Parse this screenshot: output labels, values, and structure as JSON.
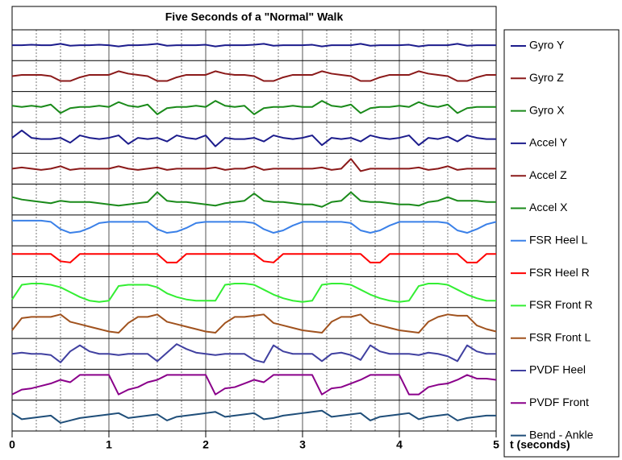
{
  "chart_data": {
    "type": "line",
    "title": "Five Seconds of a \"Normal\"  Walk",
    "xlabel": "t (seconds)",
    "x": [
      0,
      0.1,
      0.2,
      0.3,
      0.4,
      0.5,
      0.6,
      0.7,
      0.8,
      0.9,
      1,
      1.1,
      1.2,
      1.3,
      1.4,
      1.5,
      1.6,
      1.7,
      1.8,
      1.9,
      2,
      2.1,
      2.2,
      2.3,
      2.4,
      2.5,
      2.6,
      2.7,
      2.8,
      2.9,
      3,
      3.1,
      3.2,
      3.3,
      3.4,
      3.5,
      3.6,
      3.7,
      3.8,
      3.9,
      4,
      4.1,
      4.2,
      4.3,
      4.4,
      4.5,
      4.6,
      4.7,
      4.8,
      4.9,
      5
    ],
    "xlim": [
      0,
      5
    ],
    "xticks": [
      0,
      1,
      2,
      3,
      4,
      5
    ],
    "xminor": [
      0.25,
      0.5,
      0.75,
      1.25,
      1.5,
      1.75,
      2.25,
      2.5,
      2.75,
      3.25,
      3.5,
      3.75,
      4.25,
      4.5,
      4.75
    ],
    "ylim": [
      0,
      1
    ],
    "grid": true,
    "series": [
      {
        "name": "Gyro Y",
        "color": "#1c1c8c",
        "values": [
          0.5,
          0.5,
          0.52,
          0.5,
          0.5,
          0.56,
          0.48,
          0.5,
          0.5,
          0.52,
          0.5,
          0.45,
          0.5,
          0.5,
          0.52,
          0.56,
          0.48,
          0.5,
          0.5,
          0.5,
          0.52,
          0.45,
          0.5,
          0.5,
          0.5,
          0.52,
          0.56,
          0.48,
          0.5,
          0.5,
          0.5,
          0.52,
          0.45,
          0.5,
          0.5,
          0.5,
          0.56,
          0.48,
          0.5,
          0.5,
          0.5,
          0.52,
          0.45,
          0.5,
          0.5,
          0.5,
          0.56,
          0.48,
          0.5,
          0.5,
          0.5
        ]
      },
      {
        "name": "Gyro Z",
        "color": "#8b1a1a",
        "values": [
          0.5,
          0.55,
          0.55,
          0.55,
          0.5,
          0.3,
          0.3,
          0.45,
          0.55,
          0.55,
          0.55,
          0.7,
          0.6,
          0.55,
          0.5,
          0.3,
          0.3,
          0.45,
          0.55,
          0.55,
          0.55,
          0.7,
          0.6,
          0.55,
          0.55,
          0.5,
          0.3,
          0.3,
          0.45,
          0.55,
          0.55,
          0.55,
          0.7,
          0.6,
          0.55,
          0.5,
          0.3,
          0.3,
          0.45,
          0.55,
          0.55,
          0.55,
          0.7,
          0.6,
          0.55,
          0.5,
          0.3,
          0.3,
          0.45,
          0.55,
          0.55
        ]
      },
      {
        "name": "Gyro X",
        "color": "#1a8a1a",
        "values": [
          0.55,
          0.5,
          0.55,
          0.5,
          0.6,
          0.25,
          0.45,
          0.5,
          0.5,
          0.55,
          0.5,
          0.7,
          0.55,
          0.5,
          0.6,
          0.2,
          0.45,
          0.5,
          0.5,
          0.55,
          0.5,
          0.75,
          0.55,
          0.5,
          0.55,
          0.2,
          0.45,
          0.5,
          0.5,
          0.55,
          0.5,
          0.5,
          0.75,
          0.55,
          0.5,
          0.6,
          0.25,
          0.45,
          0.5,
          0.5,
          0.55,
          0.5,
          0.7,
          0.55,
          0.5,
          0.6,
          0.25,
          0.45,
          0.5,
          0.5,
          0.5
        ]
      },
      {
        "name": "Accel Y",
        "color": "#1c1c8c",
        "values": [
          0.5,
          0.8,
          0.5,
          0.45,
          0.45,
          0.5,
          0.3,
          0.6,
          0.5,
          0.45,
          0.5,
          0.6,
          0.25,
          0.5,
          0.45,
          0.5,
          0.35,
          0.6,
          0.5,
          0.45,
          0.6,
          0.15,
          0.5,
          0.45,
          0.45,
          0.5,
          0.35,
          0.6,
          0.5,
          0.45,
          0.5,
          0.6,
          0.2,
          0.5,
          0.45,
          0.5,
          0.35,
          0.6,
          0.5,
          0.45,
          0.5,
          0.6,
          0.2,
          0.5,
          0.45,
          0.55,
          0.35,
          0.6,
          0.5,
          0.45,
          0.45
        ]
      },
      {
        "name": "Accel Z",
        "color": "#8b1a1a",
        "values": [
          0.5,
          0.55,
          0.5,
          0.45,
          0.5,
          0.6,
          0.45,
          0.5,
          0.5,
          0.5,
          0.5,
          0.6,
          0.5,
          0.45,
          0.5,
          0.55,
          0.45,
          0.5,
          0.5,
          0.5,
          0.5,
          0.55,
          0.45,
          0.5,
          0.5,
          0.6,
          0.45,
          0.5,
          0.5,
          0.5,
          0.5,
          0.5,
          0.55,
          0.45,
          0.5,
          0.9,
          0.4,
          0.5,
          0.5,
          0.5,
          0.5,
          0.5,
          0.55,
          0.45,
          0.5,
          0.6,
          0.45,
          0.5,
          0.5,
          0.5,
          0.5
        ]
      },
      {
        "name": "Accel X",
        "color": "#1a8a1a",
        "values": [
          0.6,
          0.5,
          0.45,
          0.4,
          0.35,
          0.45,
          0.4,
          0.4,
          0.4,
          0.35,
          0.3,
          0.25,
          0.3,
          0.35,
          0.4,
          0.8,
          0.45,
          0.4,
          0.4,
          0.35,
          0.3,
          0.25,
          0.35,
          0.4,
          0.45,
          0.75,
          0.45,
          0.4,
          0.4,
          0.35,
          0.3,
          0.3,
          0.2,
          0.4,
          0.45,
          0.8,
          0.45,
          0.4,
          0.4,
          0.35,
          0.3,
          0.3,
          0.25,
          0.4,
          0.45,
          0.6,
          0.45,
          0.45,
          0.45,
          0.4,
          0.4
        ]
      },
      {
        "name": "FSR Heel L",
        "color": "#3a80e8",
        "values": [
          0.9,
          0.9,
          0.9,
          0.9,
          0.85,
          0.55,
          0.4,
          0.45,
          0.6,
          0.8,
          0.85,
          0.85,
          0.85,
          0.85,
          0.85,
          0.55,
          0.4,
          0.45,
          0.6,
          0.8,
          0.85,
          0.85,
          0.85,
          0.85,
          0.85,
          0.8,
          0.55,
          0.4,
          0.5,
          0.7,
          0.85,
          0.85,
          0.85,
          0.85,
          0.85,
          0.8,
          0.5,
          0.4,
          0.5,
          0.7,
          0.85,
          0.85,
          0.85,
          0.85,
          0.85,
          0.8,
          0.5,
          0.4,
          0.55,
          0.75,
          0.85
        ]
      },
      {
        "name": "FSR Heel R",
        "color": "#ff0000",
        "values": [
          0.8,
          0.8,
          0.8,
          0.8,
          0.8,
          0.5,
          0.45,
          0.8,
          0.8,
          0.8,
          0.8,
          0.8,
          0.8,
          0.8,
          0.8,
          0.8,
          0.45,
          0.45,
          0.8,
          0.8,
          0.8,
          0.8,
          0.8,
          0.8,
          0.8,
          0.8,
          0.5,
          0.45,
          0.8,
          0.8,
          0.8,
          0.8,
          0.8,
          0.8,
          0.8,
          0.8,
          0.8,
          0.45,
          0.45,
          0.8,
          0.8,
          0.8,
          0.8,
          0.8,
          0.8,
          0.8,
          0.8,
          0.45,
          0.45,
          0.8,
          0.8
        ]
      },
      {
        "name": "FSR Front R",
        "color": "#33ee33",
        "values": [
          0.2,
          0.8,
          0.85,
          0.85,
          0.8,
          0.7,
          0.5,
          0.3,
          0.15,
          0.1,
          0.15,
          0.75,
          0.8,
          0.8,
          0.8,
          0.7,
          0.45,
          0.3,
          0.2,
          0.15,
          0.15,
          0.15,
          0.8,
          0.85,
          0.85,
          0.8,
          0.6,
          0.4,
          0.25,
          0.15,
          0.1,
          0.15,
          0.8,
          0.85,
          0.85,
          0.8,
          0.6,
          0.4,
          0.25,
          0.15,
          0.1,
          0.15,
          0.75,
          0.85,
          0.85,
          0.8,
          0.6,
          0.4,
          0.25,
          0.15,
          0.15
        ]
      },
      {
        "name": "FSR Front L",
        "color": "#a0521e",
        "values": [
          0.2,
          0.7,
          0.75,
          0.75,
          0.75,
          0.85,
          0.55,
          0.45,
          0.35,
          0.25,
          0.15,
          0.1,
          0.5,
          0.75,
          0.75,
          0.85,
          0.55,
          0.45,
          0.35,
          0.25,
          0.15,
          0.1,
          0.5,
          0.75,
          0.75,
          0.8,
          0.85,
          0.5,
          0.4,
          0.3,
          0.2,
          0.15,
          0.1,
          0.55,
          0.75,
          0.75,
          0.85,
          0.5,
          0.4,
          0.3,
          0.2,
          0.15,
          0.1,
          0.55,
          0.75,
          0.85,
          0.8,
          0.8,
          0.4,
          0.25,
          0.15
        ]
      },
      {
        "name": "PVDF Heel",
        "color": "#4040a0",
        "values": [
          0.5,
          0.55,
          0.5,
          0.5,
          0.45,
          0.15,
          0.6,
          0.85,
          0.6,
          0.5,
          0.5,
          0.45,
          0.5,
          0.5,
          0.5,
          0.2,
          0.55,
          0.9,
          0.7,
          0.55,
          0.5,
          0.45,
          0.5,
          0.5,
          0.5,
          0.25,
          0.15,
          0.85,
          0.6,
          0.5,
          0.5,
          0.5,
          0.2,
          0.5,
          0.55,
          0.45,
          0.25,
          0.85,
          0.6,
          0.5,
          0.5,
          0.5,
          0.45,
          0.55,
          0.5,
          0.4,
          0.2,
          0.85,
          0.6,
          0.5,
          0.5
        ]
      },
      {
        "name": "PVDF Front",
        "color": "#8a008a",
        "values": [
          0.1,
          0.3,
          0.35,
          0.45,
          0.55,
          0.7,
          0.6,
          0.9,
          0.9,
          0.9,
          0.9,
          0.1,
          0.3,
          0.4,
          0.6,
          0.7,
          0.9,
          0.9,
          0.9,
          0.9,
          0.9,
          0.1,
          0.35,
          0.4,
          0.55,
          0.7,
          0.6,
          0.9,
          0.9,
          0.9,
          0.9,
          0.9,
          0.1,
          0.35,
          0.4,
          0.55,
          0.7,
          0.9,
          0.9,
          0.9,
          0.9,
          0.1,
          0.1,
          0.4,
          0.5,
          0.55,
          0.7,
          0.9,
          0.75,
          0.75,
          0.7
        ]
      },
      {
        "name": "Bend - Ankle",
        "color": "#1f4e79",
        "values": [
          0.6,
          0.35,
          0.4,
          0.45,
          0.5,
          0.2,
          0.3,
          0.4,
          0.45,
          0.5,
          0.55,
          0.6,
          0.4,
          0.45,
          0.5,
          0.55,
          0.3,
          0.45,
          0.5,
          0.55,
          0.6,
          0.65,
          0.45,
          0.5,
          0.55,
          0.6,
          0.35,
          0.4,
          0.5,
          0.55,
          0.6,
          0.65,
          0.7,
          0.45,
          0.5,
          0.55,
          0.6,
          0.3,
          0.45,
          0.5,
          0.55,
          0.6,
          0.35,
          0.45,
          0.5,
          0.55,
          0.3,
          0.4,
          0.45,
          0.5,
          0.5
        ]
      }
    ]
  }
}
